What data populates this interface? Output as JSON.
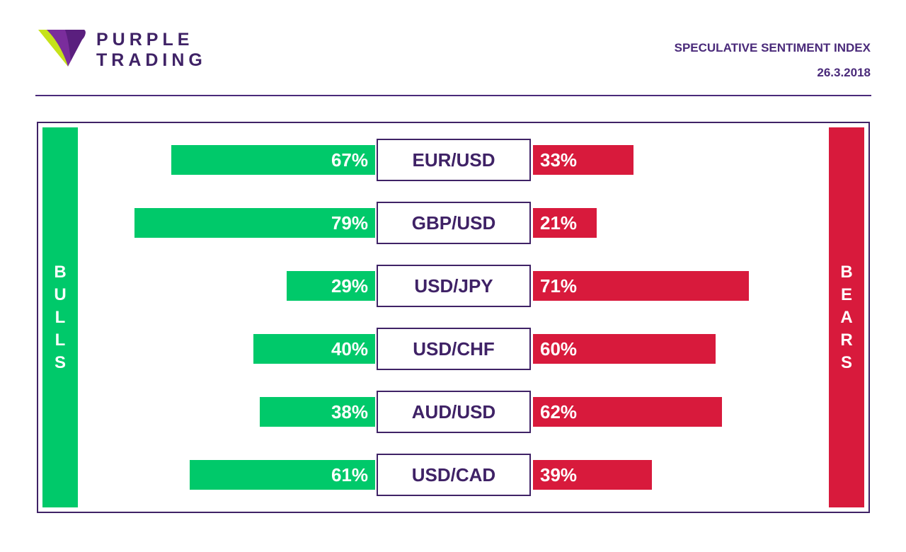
{
  "brand": {
    "line1": "PURPLE",
    "line2": "TRADING",
    "colors": {
      "primary": "#3f2266",
      "accent_lime": "#c6e21a"
    }
  },
  "header": {
    "title": "SPECULATIVE SENTIMENT INDEX",
    "date": "26.3.2018"
  },
  "sides": {
    "bulls_label": "BULLS",
    "bears_label": "BEARS",
    "bull_color": "#00c96a",
    "bear_color": "#d81a3c"
  },
  "chart_data": {
    "type": "bar",
    "categories": [
      "EUR/USD",
      "GBP/USD",
      "USD/JPY",
      "USD/CHF",
      "AUD/USD",
      "USD/CAD"
    ],
    "series": [
      {
        "name": "BULLS",
        "values": [
          67,
          79,
          29,
          40,
          38,
          61
        ],
        "labels": [
          "67%",
          "79%",
          "29%",
          "40%",
          "38%",
          "61%"
        ]
      },
      {
        "name": "BEARS",
        "values": [
          33,
          21,
          71,
          60,
          62,
          39
        ],
        "labels": [
          "33%",
          "21%",
          "71%",
          "60%",
          "62%",
          "39%"
        ]
      }
    ],
    "title": "SPECULATIVE SENTIMENT INDEX",
    "unit": "%",
    "ylim": [
      0,
      100
    ]
  }
}
